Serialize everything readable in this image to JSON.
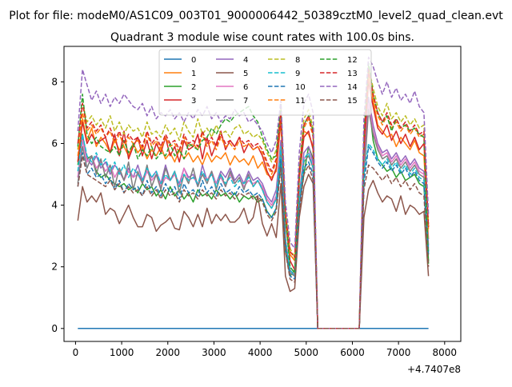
{
  "figure": {
    "suptitle": "Plot for file: modeM0/AS1C09_003T01_9000006442_50389cztM0_level2_quad_clean.evt",
    "title": "Quadrant 3 module wise count rates with 100.0s bins."
  },
  "chart_data": {
    "type": "line",
    "title": "Quadrant 3 module wise count rates with 100.0s bins.",
    "xlabel": "",
    "ylabel": "",
    "x_offset_label": "+4.7407e8",
    "xlim": [
      -250,
      8350
    ],
    "ylim": [
      -0.42,
      9.15
    ],
    "xticks": [
      0,
      1000,
      2000,
      3000,
      4000,
      5000,
      6000,
      7000,
      8000
    ],
    "yticks": [
      0,
      2,
      4,
      6,
      8
    ],
    "grid": false,
    "legend_position": "top-center",
    "legend_columns": 4,
    "x": [
      50,
      150,
      250,
      350,
      450,
      550,
      650,
      750,
      850,
      950,
      1050,
      1150,
      1250,
      1350,
      1450,
      1550,
      1650,
      1750,
      1850,
      1950,
      2050,
      2150,
      2250,
      2350,
      2450,
      2550,
      2650,
      2750,
      2850,
      2950,
      3050,
      3150,
      3250,
      3350,
      3450,
      3550,
      3650,
      3750,
      3850,
      3950,
      4050,
      4150,
      4250,
      4350,
      4450,
      4550,
      4650,
      4750,
      4850,
      4950,
      5050,
      5150,
      5250,
      6150,
      6250,
      6350,
      6450,
      6550,
      6650,
      6750,
      6850,
      6950,
      7050,
      7150,
      7250,
      7350,
      7450,
      7550,
      7650
    ],
    "series": [
      {
        "name": "0",
        "style": "solid",
        "color": "#1f77b4",
        "values": [
          0,
          0,
          0,
          0,
          0,
          0,
          0,
          0,
          0,
          0,
          0,
          0,
          0,
          0,
          0,
          0,
          0,
          0,
          0,
          0,
          0,
          0,
          0,
          0,
          0,
          0,
          0,
          0,
          0,
          0,
          0,
          0,
          0,
          0,
          0,
          0,
          0,
          0,
          0,
          0,
          0,
          0,
          0,
          0,
          0,
          0,
          0,
          0,
          0,
          0,
          0,
          0,
          0,
          0,
          0,
          0,
          0,
          0,
          0,
          0,
          0,
          0,
          0,
          0,
          0,
          0,
          0,
          0,
          0
        ]
      },
      {
        "name": "1",
        "style": "solid",
        "color": "#ff7f0e",
        "values": [
          5.4,
          6.8,
          6.1,
          6.5,
          5.9,
          6.2,
          6.0,
          5.7,
          6.1,
          5.8,
          5.9,
          5.6,
          6.0,
          5.7,
          5.9,
          5.5,
          5.8,
          5.6,
          5.9,
          5.5,
          5.7,
          5.4,
          5.8,
          5.5,
          5.7,
          5.4,
          5.6,
          5.3,
          5.7,
          5.4,
          5.6,
          5.5,
          5.7,
          5.3,
          5.6,
          5.4,
          5.5,
          5.3,
          5.6,
          5.2,
          5.4,
          5.0,
          4.9,
          5.1,
          6.7,
          3.5,
          2.4,
          2.2,
          4.8,
          6.4,
          6.3,
          5.9,
          0,
          0,
          5.5,
          8.3,
          7.4,
          6.6,
          6.4,
          6.2,
          6.3,
          5.9,
          6.2,
          6.0,
          5.8,
          6.1,
          5.7,
          5.6,
          2.9
        ]
      },
      {
        "name": "2",
        "style": "solid",
        "color": "#2ca02c",
        "values": [
          5.3,
          6.3,
          5.5,
          5.6,
          5.1,
          4.9,
          5.0,
          4.8,
          4.7,
          4.6,
          4.7,
          4.5,
          4.6,
          4.4,
          4.7,
          4.5,
          4.6,
          4.3,
          4.5,
          4.2,
          4.6,
          4.3,
          4.5,
          4.2,
          4.4,
          4.1,
          4.5,
          4.3,
          4.4,
          4.2,
          4.5,
          4.3,
          4.4,
          4.2,
          4.4,
          4.1,
          4.3,
          4.2,
          4.3,
          4.1,
          4.2,
          3.8,
          3.6,
          3.9,
          5.4,
          2.5,
          1.7,
          1.9,
          4.0,
          5.0,
          5.9,
          5.5,
          0,
          0,
          5.3,
          7.4,
          6.1,
          5.5,
          5.3,
          5.1,
          5.2,
          4.9,
          5.1,
          4.8,
          4.9,
          5.0,
          4.7,
          4.6,
          2.2
        ]
      },
      {
        "name": "3",
        "style": "solid",
        "color": "#d62728",
        "values": [
          5.4,
          6.7,
          6.0,
          6.3,
          6.0,
          6.1,
          6.2,
          5.7,
          6.3,
          5.6,
          6.4,
          5.5,
          5.9,
          6.2,
          5.6,
          6.1,
          5.5,
          6.0,
          5.7,
          6.2,
          5.6,
          5.9,
          5.4,
          6.1,
          5.8,
          5.9,
          6.3,
          5.5,
          6.2,
          5.6,
          6.0,
          6.4,
          5.8,
          6.1,
          5.9,
          6.2,
          5.7,
          6.0,
          5.8,
          5.9,
          5.6,
          5.1,
          4.8,
          5.2,
          6.8,
          3.5,
          2.2,
          1.9,
          4.9,
          6.2,
          6.4,
          5.8,
          0,
          0,
          5.7,
          8.0,
          7.2,
          6.5,
          6.3,
          6.6,
          6.1,
          6.4,
          6.0,
          6.3,
          5.9,
          6.2,
          5.8,
          6.0,
          3.3
        ]
      },
      {
        "name": "4",
        "style": "solid",
        "color": "#9467bd",
        "values": [
          4.9,
          6.2,
          5.5,
          5.3,
          5.6,
          5.2,
          5.4,
          5.0,
          5.3,
          5.1,
          4.8,
          5.2,
          4.9,
          5.3,
          4.8,
          5.2,
          4.9,
          5.1,
          4.7,
          5.3,
          4.8,
          5.0,
          4.7,
          5.2,
          4.9,
          5.0,
          4.6,
          5.3,
          4.8,
          5.0,
          4.7,
          5.1,
          4.9,
          5.2,
          4.8,
          5.0,
          4.7,
          5.1,
          4.8,
          4.9,
          4.7,
          4.3,
          4.1,
          4.5,
          6.1,
          2.9,
          1.9,
          1.7,
          4.3,
          5.7,
          5.9,
          5.4,
          0,
          0,
          5.1,
          7.5,
          6.6,
          6.0,
          5.7,
          5.8,
          5.5,
          5.7,
          5.4,
          5.6,
          5.3,
          5.5,
          5.2,
          5.1,
          2.7
        ]
      },
      {
        "name": "5",
        "style": "solid",
        "color": "#8c564b",
        "values": [
          3.5,
          4.6,
          4.1,
          4.3,
          4.1,
          4.4,
          3.7,
          3.9,
          3.8,
          3.4,
          3.7,
          4.0,
          3.6,
          3.3,
          3.3,
          3.7,
          3.6,
          3.15,
          3.35,
          3.45,
          3.6,
          3.25,
          3.2,
          3.8,
          3.6,
          3.3,
          3.7,
          3.3,
          3.9,
          3.4,
          3.7,
          3.5,
          3.7,
          3.45,
          3.45,
          3.6,
          3.9,
          3.4,
          3.6,
          4.3,
          3.4,
          3.0,
          3.4,
          2.95,
          4.7,
          1.7,
          1.2,
          1.3,
          3.6,
          4.6,
          5.0,
          4.7,
          0,
          0,
          3.6,
          4.5,
          4.8,
          4.4,
          4.1,
          4.3,
          4.2,
          3.8,
          4.3,
          3.7,
          4.0,
          3.9,
          3.7,
          3.8,
          1.7
        ]
      },
      {
        "name": "6",
        "style": "solid",
        "color": "#e377c2",
        "values": [
          4.9,
          6.1,
          5.4,
          5.6,
          5.2,
          5.4,
          5.1,
          5.3,
          4.9,
          5.2,
          4.8,
          5.1,
          4.9,
          5.0,
          4.7,
          5.1,
          4.8,
          5.0,
          4.6,
          4.9,
          4.8,
          5.0,
          4.6,
          5.2,
          4.8,
          4.9,
          4.7,
          5.0,
          4.8,
          5.1,
          4.7,
          4.9,
          4.6,
          5.0,
          4.7,
          4.9,
          4.6,
          4.8,
          4.7,
          4.8,
          4.6,
          4.2,
          4.0,
          4.3,
          5.9,
          2.9,
          1.8,
          1.8,
          4.2,
          5.5,
          5.7,
          5.3,
          0,
          0,
          5.0,
          7.3,
          6.4,
          5.9,
          5.6,
          5.7,
          5.4,
          5.6,
          5.3,
          5.5,
          5.2,
          5.4,
          5.1,
          5.0,
          2.6
        ]
      },
      {
        "name": "7",
        "style": "solid",
        "color": "#7f7f7f",
        "values": [
          4.7,
          5.9,
          5.2,
          5.6,
          5.0,
          5.5,
          4.9,
          5.3,
          4.6,
          5.2,
          4.8,
          5.4,
          4.5,
          5.1,
          4.7,
          5.3,
          4.6,
          5.0,
          4.5,
          5.2,
          4.8,
          5.1,
          4.4,
          5.0,
          4.7,
          5.2,
          4.6,
          5.0,
          4.7,
          5.1,
          4.5,
          5.0,
          4.6,
          5.1,
          4.7,
          4.9,
          4.5,
          5.0,
          4.6,
          4.8,
          4.5,
          4.1,
          3.9,
          4.2,
          5.8,
          2.8,
          1.8,
          1.7,
          4.1,
          5.4,
          5.6,
          5.2,
          0,
          0,
          4.9,
          7.1,
          6.3,
          5.8,
          5.5,
          5.6,
          5.3,
          5.5,
          5.2,
          5.4,
          5.1,
          5.3,
          5.0,
          4.9,
          2.5
        ]
      },
      {
        "name": "8",
        "style": "dashed",
        "color": "#bcbd22",
        "values": [
          5.8,
          7.3,
          6.7,
          6.9,
          6.6,
          6.8,
          6.5,
          6.9,
          6.4,
          6.7,
          6.3,
          6.6,
          6.4,
          6.5,
          6.2,
          6.7,
          6.3,
          6.4,
          6.2,
          6.6,
          6.3,
          6.5,
          6.1,
          6.7,
          6.4,
          6.2,
          6.8,
          6.3,
          6.5,
          6.2,
          6.6,
          6.3,
          6.4,
          6.2,
          6.5,
          6.6,
          6.3,
          6.4,
          6.2,
          6.3,
          6.1,
          5.7,
          5.4,
          5.8,
          7.1,
          3.8,
          2.6,
          2.3,
          5.2,
          6.8,
          7.1,
          6.5,
          0,
          0,
          6.3,
          8.5,
          7.8,
          7.2,
          6.9,
          7.3,
          6.8,
          7.0,
          6.7,
          6.9,
          6.6,
          6.8,
          6.5,
          6.6,
          3.4
        ]
      },
      {
        "name": "9",
        "style": "dashed",
        "color": "#17becf",
        "values": [
          5.1,
          6.3,
          5.6,
          5.4,
          5.7,
          5.3,
          5.5,
          5.1,
          5.4,
          5.0,
          5.3,
          4.9,
          5.2,
          5.0,
          4.8,
          5.2,
          4.9,
          5.1,
          4.7,
          5.0,
          4.8,
          5.1,
          4.6,
          5.0,
          4.8,
          4.9,
          4.7,
          5.1,
          4.8,
          5.0,
          4.6,
          5.0,
          4.7,
          4.9,
          4.6,
          4.8,
          4.7,
          4.9,
          4.6,
          4.8,
          4.5,
          4.1,
          3.9,
          4.2,
          5.9,
          2.9,
          1.9,
          1.7,
          4.2,
          5.5,
          5.7,
          5.2,
          0,
          0,
          5.0,
          6.0,
          5.8,
          5.5,
          5.3,
          5.5,
          5.2,
          5.4,
          5.1,
          5.3,
          5.0,
          5.2,
          4.9,
          4.8,
          2.5
        ]
      },
      {
        "name": "10",
        "style": "dashed",
        "color": "#1f77b4",
        "values": [
          4.6,
          5.7,
          5.0,
          5.2,
          4.9,
          5.0,
          4.7,
          4.9,
          4.5,
          4.8,
          4.4,
          4.7,
          4.5,
          4.6,
          4.3,
          4.8,
          4.4,
          4.6,
          4.3,
          4.7,
          4.4,
          4.6,
          4.2,
          4.7,
          4.4,
          4.5,
          4.3,
          4.8,
          4.4,
          4.6,
          4.3,
          4.7,
          4.4,
          4.5,
          4.3,
          4.6,
          4.4,
          4.5,
          4.3,
          4.4,
          4.2,
          3.8,
          3.6,
          3.9,
          5.5,
          2.6,
          1.7,
          1.6,
          3.9,
          5.2,
          5.4,
          5.0,
          0,
          0,
          4.7,
          5.9,
          5.7,
          5.4,
          5.2,
          5.4,
          5.1,
          5.3,
          5.0,
          5.2,
          4.9,
          5.1,
          4.8,
          4.7,
          2.4
        ]
      },
      {
        "name": "11",
        "style": "dashed",
        "color": "#ff7f0e",
        "values": [
          5.6,
          7.0,
          6.4,
          6.6,
          6.3,
          6.5,
          6.2,
          6.4,
          6.0,
          6.3,
          5.9,
          6.2,
          6.0,
          6.1,
          5.8,
          6.3,
          5.9,
          6.1,
          5.8,
          6.2,
          5.9,
          6.0,
          5.7,
          6.2,
          5.9,
          6.0,
          5.8,
          6.3,
          5.9,
          6.1,
          5.8,
          6.2,
          5.9,
          6.0,
          5.8,
          6.1,
          5.9,
          6.0,
          5.8,
          5.9,
          5.7,
          5.3,
          5.0,
          5.4,
          6.9,
          3.6,
          2.4,
          2.2,
          5.0,
          6.5,
          6.8,
          6.2,
          0,
          0,
          6.0,
          8.2,
          7.5,
          6.9,
          6.6,
          6.9,
          6.5,
          6.7,
          6.4,
          6.6,
          6.3,
          6.5,
          6.2,
          6.3,
          3.2
        ]
      },
      {
        "name": "12",
        "style": "dashed",
        "color": "#2ca02c",
        "values": [
          5.9,
          7.6,
          6.3,
          6.0,
          6.2,
          5.9,
          5.8,
          5.7,
          5.9,
          5.6,
          6.1,
          5.7,
          6.0,
          5.5,
          5.8,
          5.6,
          5.9,
          5.5,
          5.7,
          5.6,
          6.0,
          5.6,
          5.8,
          5.5,
          6.0,
          5.9,
          5.8,
          6.1,
          6.2,
          6.5,
          6.3,
          6.6,
          6.8,
          6.7,
          6.9,
          7.0,
          7.1,
          7.2,
          6.9,
          6.7,
          6.2,
          5.8,
          5.5,
          5.6,
          7.3,
          3.6,
          2.0,
          1.8,
          5.0,
          6.6,
          6.9,
          6.4,
          0,
          0,
          6.2,
          8.6,
          7.6,
          7.0,
          6.7,
          6.9,
          6.4,
          6.8,
          6.5,
          6.6,
          6.4,
          6.5,
          6.3,
          6.2,
          2.1
        ]
      },
      {
        "name": "13",
        "style": "dashed",
        "color": "#d62728",
        "values": [
          6.0,
          7.3,
          6.5,
          6.7,
          6.4,
          6.6,
          6.2,
          6.5,
          6.1,
          6.4,
          6.0,
          6.3,
          6.1,
          6.2,
          5.9,
          6.4,
          6.0,
          6.2,
          5.9,
          6.3,
          6.0,
          6.1,
          5.8,
          6.3,
          6.0,
          6.1,
          5.9,
          6.4,
          6.0,
          6.2,
          5.9,
          6.3,
          6.0,
          6.1,
          5.9,
          6.2,
          6.0,
          6.1,
          5.9,
          6.0,
          5.8,
          5.4,
          5.1,
          5.5,
          7.0,
          3.7,
          2.5,
          2.3,
          5.1,
          6.6,
          6.9,
          6.3,
          0,
          0,
          6.1,
          8.4,
          7.6,
          7.0,
          6.7,
          7.0,
          6.6,
          6.8,
          6.5,
          6.7,
          6.4,
          6.6,
          6.3,
          6.4,
          3.3
        ]
      },
      {
        "name": "14",
        "style": "dashed",
        "color": "#9467bd",
        "values": [
          6.4,
          8.4,
          7.9,
          7.4,
          7.7,
          7.3,
          7.6,
          7.2,
          7.5,
          7.3,
          7.6,
          7.4,
          7.2,
          7.1,
          7.3,
          6.9,
          7.2,
          6.8,
          7.0,
          6.9,
          7.1,
          6.8,
          7.0,
          6.7,
          7.0,
          6.8,
          7.1,
          6.9,
          7.2,
          6.8,
          7.0,
          6.7,
          6.9,
          6.8,
          7.1,
          6.9,
          7.0,
          6.7,
          6.8,
          6.6,
          6.4,
          6.0,
          5.7,
          6.1,
          7.4,
          4.1,
          2.8,
          2.6,
          5.7,
          7.3,
          7.6,
          7.0,
          0,
          0,
          6.8,
          8.8,
          8.5,
          8.0,
          7.6,
          8.0,
          7.5,
          7.8,
          7.4,
          7.6,
          7.3,
          7.7,
          7.2,
          7.0,
          3.7
        ]
      },
      {
        "name": "15",
        "style": "dashed",
        "color": "#8c564b",
        "values": [
          4.6,
          5.6,
          5.0,
          4.9,
          4.8,
          4.7,
          4.6,
          4.8,
          4.5,
          4.7,
          4.4,
          4.6,
          4.4,
          4.5,
          4.3,
          4.6,
          4.3,
          4.5,
          4.2,
          4.5,
          4.3,
          4.4,
          4.1,
          4.5,
          4.3,
          4.4,
          4.2,
          4.5,
          4.3,
          4.4,
          4.2,
          4.5,
          4.3,
          4.4,
          4.2,
          4.4,
          4.3,
          4.4,
          4.2,
          4.3,
          4.1,
          3.7,
          3.5,
          3.8,
          5.2,
          2.5,
          1.6,
          1.5,
          3.8,
          5.0,
          5.3,
          4.8,
          0,
          0,
          4.5,
          5.3,
          5.2,
          5.0,
          4.8,
          5.0,
          4.7,
          4.9,
          4.6,
          4.8,
          4.5,
          4.7,
          4.4,
          4.3,
          2.0
        ]
      }
    ]
  }
}
